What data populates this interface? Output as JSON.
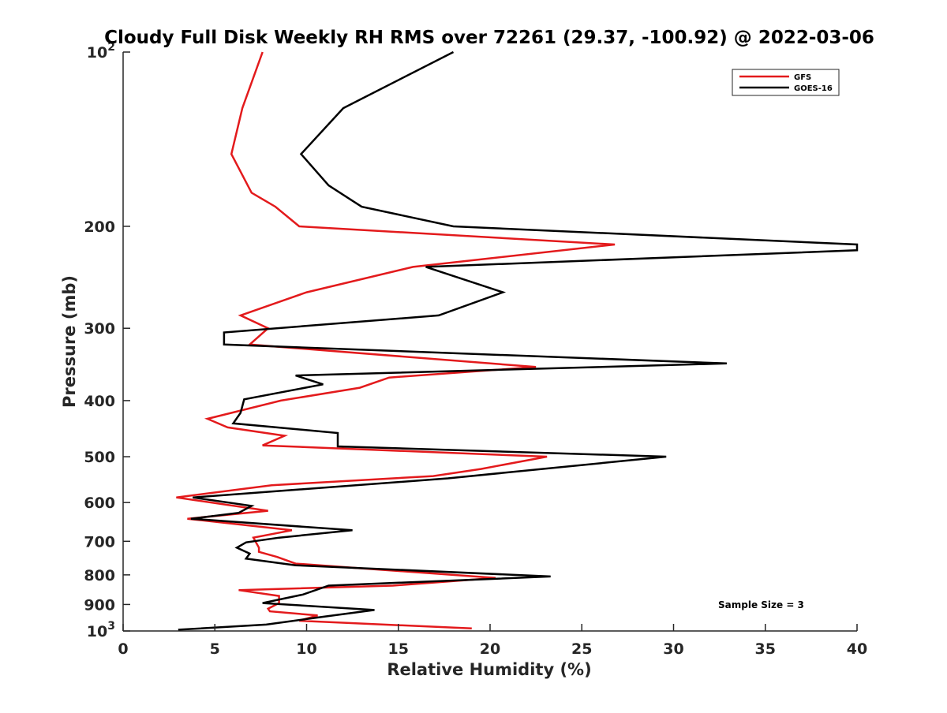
{
  "chart_data": {
    "type": "line",
    "title": "Cloudy Full Disk Weekly RH RMS over 72261 (29.37, -100.92) @ 2022-03-06",
    "xlabel": "Relative Humidity (%)",
    "ylabel": "Pressure (mb)",
    "xlim": [
      0,
      40
    ],
    "ylim": [
      100,
      1000
    ],
    "yscale": "log",
    "yreversed": true,
    "grid": false,
    "legend_position": "top-right",
    "x_ticks": [
      {
        "value": 0,
        "label": "0"
      },
      {
        "value": 5,
        "label": "5"
      },
      {
        "value": 10,
        "label": "10"
      },
      {
        "value": 15,
        "label": "15"
      },
      {
        "value": 20,
        "label": "20"
      },
      {
        "value": 25,
        "label": "25"
      },
      {
        "value": 30,
        "label": "30"
      },
      {
        "value": 35,
        "label": "35"
      },
      {
        "value": 40,
        "label": "40"
      }
    ],
    "y_ticks": [
      {
        "value": 100,
        "base": "10",
        "exp": "2"
      },
      {
        "value": 200,
        "label": "200"
      },
      {
        "value": 300,
        "label": "300"
      },
      {
        "value": 400,
        "label": "400"
      },
      {
        "value": 500,
        "label": "500"
      },
      {
        "value": 600,
        "label": "600"
      },
      {
        "value": 700,
        "label": "700"
      },
      {
        "value": 800,
        "label": "800"
      },
      {
        "value": 900,
        "label": "900"
      },
      {
        "value": 1000,
        "base": "10",
        "exp": "3"
      }
    ],
    "annotation": "Sample Size = 3",
    "series": [
      {
        "name": "GFS",
        "color": "#e31a1c",
        "points": [
          [
            7.6,
            100
          ],
          [
            6.5,
            125
          ],
          [
            5.9,
            150
          ],
          [
            7.0,
            175
          ],
          [
            8.3,
            185
          ],
          [
            9.6,
            200
          ],
          [
            26.8,
            215
          ],
          [
            15.8,
            235
          ],
          [
            10.0,
            260
          ],
          [
            6.4,
            285
          ],
          [
            7.9,
            300
          ],
          [
            6.9,
            320
          ],
          [
            22.5,
            350
          ],
          [
            14.5,
            365
          ],
          [
            12.9,
            380
          ],
          [
            8.6,
            400
          ],
          [
            4.6,
            430
          ],
          [
            5.7,
            445
          ],
          [
            8.8,
            460
          ],
          [
            7.6,
            478
          ],
          [
            23.1,
            500
          ],
          [
            19.5,
            525
          ],
          [
            16.9,
            540
          ],
          [
            8.1,
            560
          ],
          [
            2.9,
            588
          ],
          [
            7.9,
            620
          ],
          [
            3.5,
            640
          ],
          [
            9.2,
            670
          ],
          [
            7.1,
            690
          ],
          [
            7.4,
            718
          ],
          [
            7.4,
            730
          ],
          [
            8.4,
            745
          ],
          [
            9.4,
            765
          ],
          [
            20.3,
            810
          ],
          [
            14.7,
            835
          ],
          [
            6.3,
            850
          ],
          [
            8.5,
            870
          ],
          [
            8.5,
            895
          ],
          [
            7.9,
            915
          ],
          [
            8.0,
            925
          ],
          [
            10.6,
            940
          ],
          [
            9.6,
            960
          ],
          [
            19.0,
            990
          ]
        ]
      },
      {
        "name": "GOES-16",
        "color": "#000000",
        "points": [
          [
            18.0,
            100
          ],
          [
            12.0,
            125
          ],
          [
            9.7,
            150
          ],
          [
            11.2,
            170
          ],
          [
            13.0,
            185
          ],
          [
            18.0,
            200
          ],
          [
            40.0,
            215
          ],
          [
            40.0,
            220
          ],
          [
            16.5,
            235
          ],
          [
            20.7,
            260
          ],
          [
            17.2,
            285
          ],
          [
            5.5,
            305
          ],
          [
            5.5,
            320
          ],
          [
            32.9,
            345
          ],
          [
            9.4,
            362
          ],
          [
            10.9,
            375
          ],
          [
            6.6,
            398
          ],
          [
            6.4,
            420
          ],
          [
            6.0,
            438
          ],
          [
            11.7,
            455
          ],
          [
            11.7,
            480
          ],
          [
            29.6,
            500
          ],
          [
            17.7,
            545
          ],
          [
            3.8,
            588
          ],
          [
            7.0,
            608
          ],
          [
            6.3,
            625
          ],
          [
            3.7,
            640
          ],
          [
            12.5,
            670
          ],
          [
            8.5,
            690
          ],
          [
            6.7,
            703
          ],
          [
            6.2,
            718
          ],
          [
            6.9,
            735
          ],
          [
            6.7,
            750
          ],
          [
            9.4,
            770
          ],
          [
            23.3,
            805
          ],
          [
            11.2,
            835
          ],
          [
            9.8,
            865
          ],
          [
            7.6,
            895
          ],
          [
            13.7,
            920
          ],
          [
            10.9,
            945
          ],
          [
            7.8,
            975
          ],
          [
            3.0,
            995
          ]
        ]
      }
    ]
  }
}
